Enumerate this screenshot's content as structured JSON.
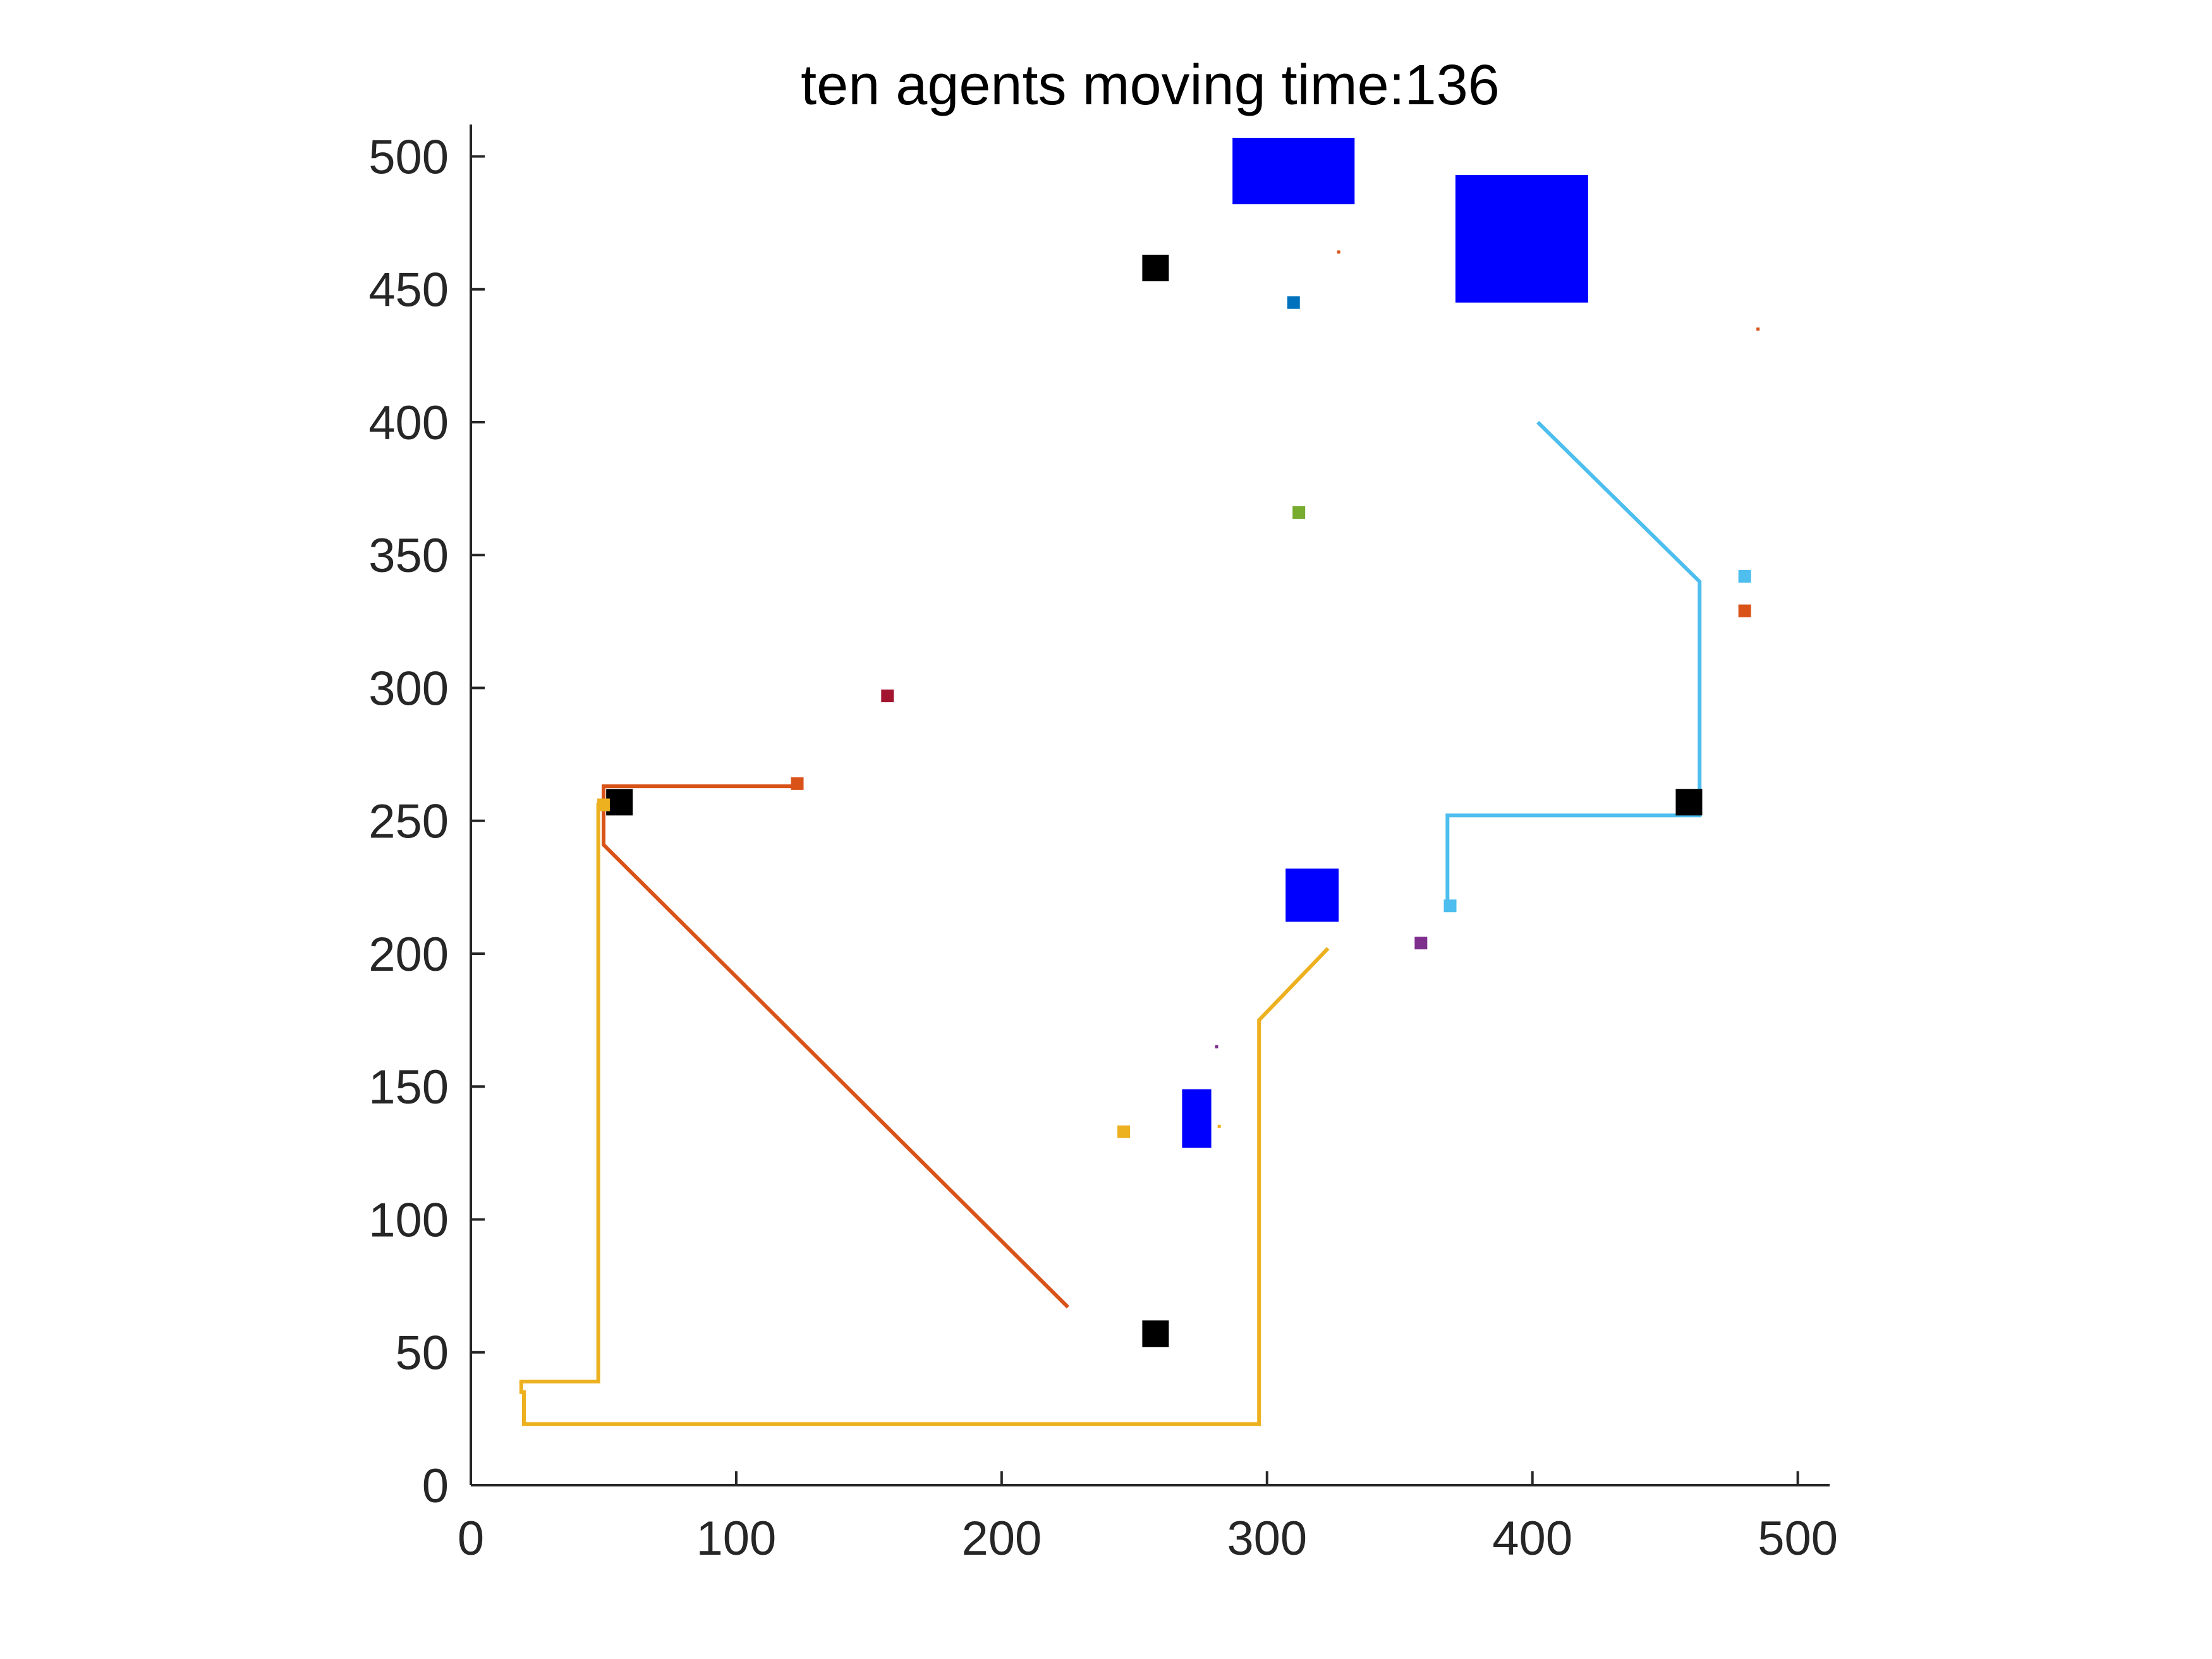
{
  "chart_data": {
    "type": "scatter",
    "title": "ten agents moving time:136",
    "xlabel": "",
    "ylabel": "",
    "xlim": [
      0,
      512
    ],
    "ylim": [
      0,
      512
    ],
    "x_ticks": [
      0,
      100,
      200,
      300,
      400,
      500
    ],
    "y_ticks": [
      0,
      50,
      100,
      150,
      200,
      250,
      300,
      350,
      400,
      450,
      500
    ],
    "grid": false,
    "colors": {
      "obstacle": "#0000ff",
      "target": "#000000",
      "axis": "#262626"
    },
    "obstacles": [
      {
        "x0": 287,
        "x1": 333,
        "y0": 482,
        "y1": 507
      },
      {
        "x0": 371,
        "x1": 421,
        "y0": 445,
        "y1": 493
      },
      {
        "x0": 307,
        "x1": 327,
        "y0": 212,
        "y1": 232
      },
      {
        "x0": 268,
        "x1": 279,
        "y0": 127,
        "y1": 149
      }
    ],
    "targets": [
      {
        "x": 258,
        "y": 458
      },
      {
        "x": 56,
        "y": 257
      },
      {
        "x": 459,
        "y": 257
      },
      {
        "x": 258,
        "y": 57
      }
    ],
    "series": [
      {
        "color": "#d95319",
        "path": [
          [
            225,
            67
          ],
          [
            50,
            241
          ],
          [
            50,
            263
          ],
          [
            123,
            263
          ]
        ],
        "agent": [
          123,
          264
        ]
      },
      {
        "color": "#edb120",
        "path": [
          [
            323,
            202
          ],
          [
            297,
            175
          ],
          [
            297,
            23
          ],
          [
            20,
            23
          ],
          [
            20,
            35
          ],
          [
            19,
            35
          ],
          [
            19,
            39
          ],
          [
            48,
            39
          ],
          [
            48,
            256
          ],
          [
            50,
            256
          ]
        ],
        "agent": [
          50,
          256
        ]
      },
      {
        "color": "#4dbeee",
        "path": [
          [
            402,
            400
          ],
          [
            463,
            340
          ],
          [
            463,
            252
          ],
          [
            368,
            252
          ],
          [
            368,
            218
          ]
        ],
        "agent": [
          369,
          218
        ]
      },
      {
        "color": "#0072bd",
        "path": [],
        "agent": [
          310,
          445
        ]
      },
      {
        "color": "#77ac30",
        "path": [],
        "agent": [
          312,
          366
        ]
      },
      {
        "color": "#a2142f",
        "path": [],
        "agent": [
          157,
          297
        ]
      },
      {
        "color": "#7e2f8e",
        "path": [],
        "agent": [
          358,
          204
        ]
      },
      {
        "color": "#edb120",
        "path": [],
        "agent": [
          246,
          133
        ]
      },
      {
        "color": "#4dbeee",
        "path": [],
        "agent": [
          480,
          342
        ]
      },
      {
        "color": "#d95319",
        "path": [],
        "agent": [
          480,
          329
        ]
      }
    ],
    "specks": [
      {
        "x": 327,
        "y": 464,
        "color": "#d95319"
      },
      {
        "x": 485,
        "y": 435,
        "color": "#d95319"
      },
      {
        "x": 281,
        "y": 165,
        "color": "#7e2f8e"
      },
      {
        "x": 282,
        "y": 135,
        "color": "#edb120"
      }
    ]
  }
}
